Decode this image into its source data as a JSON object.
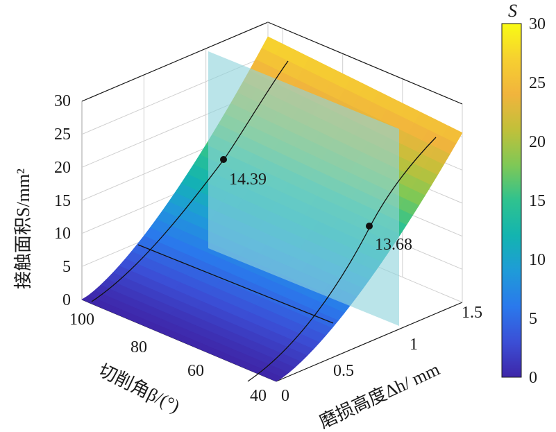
{
  "chart_data": {
    "type": "surface",
    "title": "",
    "xlabel": "磨损高度Δh/ mm",
    "ylabel": "切削角β/(°)",
    "zlabel": "接触面积S/mm²",
    "colorbar_label": "S",
    "x_ticks": [
      "0",
      "0.5",
      "1",
      "1.5"
    ],
    "y_ticks": [
      "40",
      "60",
      "80",
      "100"
    ],
    "z_ticks": [
      "0",
      "5",
      "10",
      "15",
      "20",
      "25",
      "30"
    ],
    "colorbar_ticks": [
      "0",
      "5",
      "10",
      "15",
      "20",
      "25",
      "30"
    ],
    "xlim": [
      0,
      1.5
    ],
    "ylim": [
      40,
      105
    ],
    "zlim": [
      0,
      30
    ],
    "colormap": [
      "#3e26a8",
      "#3b4fd6",
      "#2a79ec",
      "#1f9bd8",
      "#13b4b0",
      "#2fc28f",
      "#7fc856",
      "#c1c03a",
      "#f1b43d",
      "#f6d030",
      "#f9fb14"
    ],
    "surface_note": "S rises with Δh and is nearly constant along β",
    "plane": {
      "color": "#8fd3dc",
      "x": 1.0
    },
    "curve_color": "#111111",
    "points": [
      {
        "x": 1.0,
        "y": 100,
        "z": 14.39,
        "label": "14.39"
      },
      {
        "x": 1.0,
        "y": 45,
        "z": 13.68,
        "label": "13.68"
      }
    ]
  }
}
